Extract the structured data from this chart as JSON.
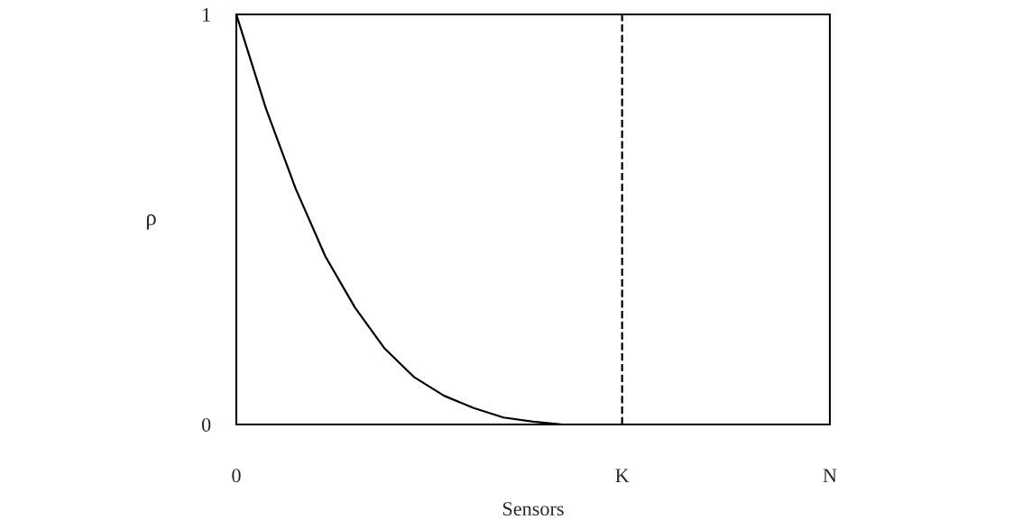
{
  "chart_data": {
    "type": "line",
    "xlabel": "Sensors",
    "ylabel": "ρ",
    "categories": [
      "0",
      null,
      null,
      null,
      null,
      null,
      null,
      null,
      null,
      null,
      null,
      null,
      null,
      "K",
      null,
      null,
      null,
      null,
      null,
      null,
      "N"
    ],
    "series": [
      {
        "color": "#000000",
        "values": [
          1,
          0.77,
          0.575,
          0.41,
          0.285,
          0.185,
          0.115,
          0.07,
          0.04,
          0.017,
          0.007,
          0,
          0,
          0,
          0,
          0,
          0,
          0,
          0,
          0,
          0
        ]
      }
    ],
    "ylim": [
      0,
      1
    ],
    "yticks": [
      0,
      1
    ],
    "ref_lines": [
      {
        "axis": "x",
        "value": "K",
        "color": "#000000",
        "line_style": "dashed"
      }
    ],
    "grid": false,
    "legend": false,
    "marker": "none",
    "line_style": "solid"
  }
}
